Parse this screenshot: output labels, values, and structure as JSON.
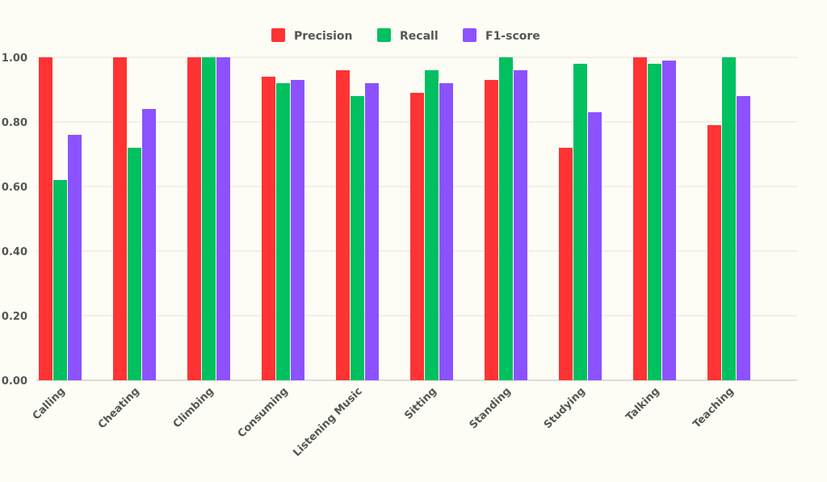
{
  "chart_data": {
    "type": "bar",
    "title": "",
    "xlabel": "",
    "ylabel": "",
    "ylim": [
      0,
      1
    ],
    "y_ticks": [
      "0.00",
      "0.20",
      "0.40",
      "0.60",
      "0.80",
      "1.00"
    ],
    "y_tick_values": [
      0,
      0.2,
      0.4,
      0.6,
      0.8,
      1.0
    ],
    "grid": true,
    "legend_position": "top-center",
    "categories": [
      "Calling",
      "Cheating",
      "Climbing",
      "Consuming",
      "Listening Music",
      "Sitting",
      "Standing",
      "Studying",
      "Talking",
      "Teaching"
    ],
    "series": [
      {
        "name": "Precision",
        "color": "#ff3333",
        "values": [
          1.0,
          1.0,
          1.0,
          0.94,
          0.96,
          0.89,
          0.93,
          0.72,
          1.0,
          0.79
        ]
      },
      {
        "name": "Recall",
        "color": "#00c060",
        "values": [
          0.62,
          0.72,
          1.0,
          0.92,
          0.88,
          0.96,
          1.0,
          0.98,
          0.98,
          1.0
        ]
      },
      {
        "name": "F1-score",
        "color": "#8c52ff",
        "values": [
          0.76,
          0.84,
          1.0,
          0.93,
          0.92,
          0.92,
          0.96,
          0.83,
          0.99,
          0.88
        ]
      }
    ]
  }
}
